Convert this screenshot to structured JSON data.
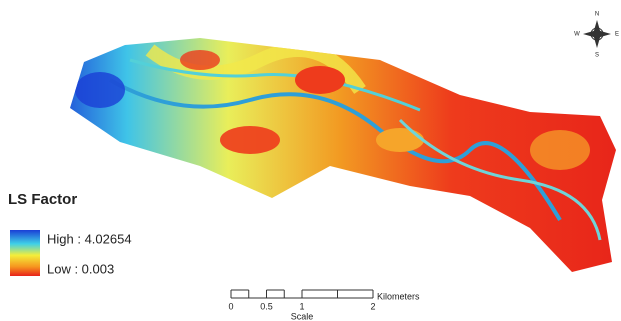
{
  "legend": {
    "title": "LS Factor",
    "high": "High : 4.02654",
    "low": "Low : 0.003"
  },
  "scale": {
    "ticks": [
      0,
      0.5,
      1,
      2
    ],
    "unit": "Kilometers",
    "title": "Scale"
  },
  "compass": {
    "n": "N",
    "s": "S",
    "e": "E",
    "w": "W"
  }
}
